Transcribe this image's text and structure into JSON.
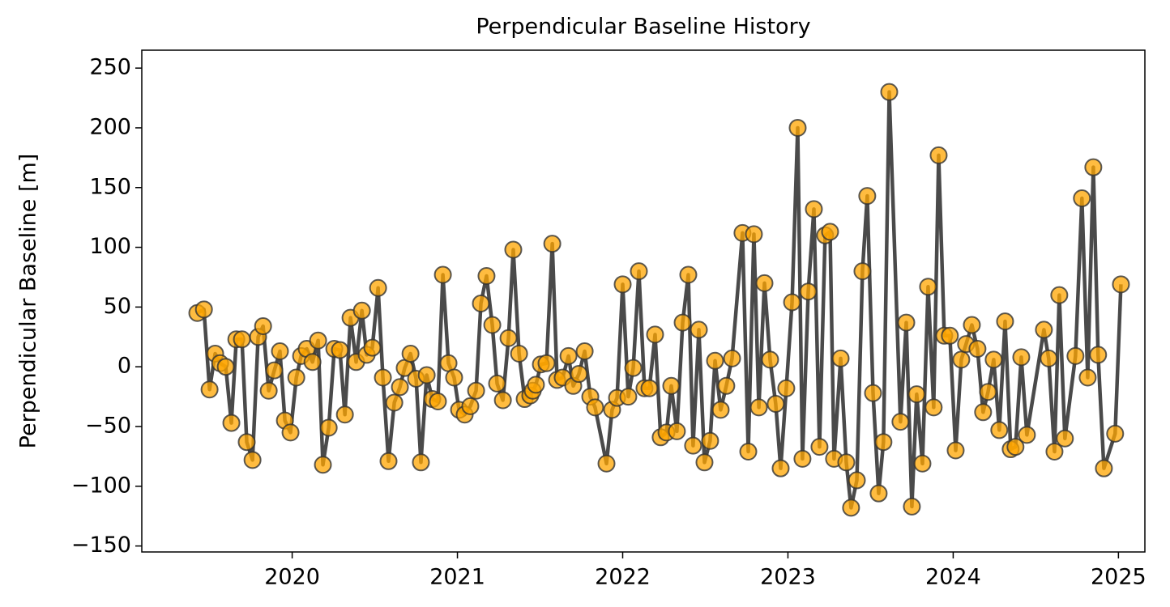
{
  "chart_data": {
    "type": "line",
    "title": "Perpendicular Baseline History",
    "ylabel": "Perpendicular Baseline [m]",
    "x": [
      2019.426,
      2019.466,
      2019.5,
      2019.534,
      2019.564,
      2019.598,
      2019.632,
      2019.662,
      2019.696,
      2019.725,
      2019.76,
      2019.794,
      2019.824,
      2019.858,
      2019.892,
      2019.926,
      2019.956,
      2019.99,
      2020.025,
      2020.054,
      2020.088,
      2020.123,
      2020.157,
      2020.186,
      2020.221,
      2020.255,
      2020.289,
      2020.319,
      2020.353,
      2020.387,
      2020.422,
      2020.451,
      2020.485,
      2020.52,
      2020.549,
      2020.583,
      2020.618,
      2020.652,
      2020.681,
      2020.716,
      2020.75,
      2020.779,
      2020.814,
      2020.848,
      2020.882,
      2020.912,
      2020.946,
      2020.98,
      2021.01,
      2021.044,
      2021.078,
      2021.113,
      2021.142,
      2021.176,
      2021.211,
      2021.24,
      2021.275,
      2021.309,
      2021.338,
      2021.373,
      2021.407,
      2021.441,
      2021.456,
      2021.475,
      2021.505,
      2021.539,
      2021.574,
      2021.603,
      2021.637,
      2021.672,
      2021.701,
      2021.735,
      2021.77,
      2021.804,
      2021.833,
      2021.902,
      2021.936,
      2021.966,
      2022.0,
      2022.034,
      2022.064,
      2022.098,
      2022.132,
      2022.162,
      2022.196,
      2022.23,
      2022.265,
      2022.294,
      2022.328,
      2022.363,
      2022.397,
      2022.426,
      2022.461,
      2022.495,
      2022.529,
      2022.559,
      2022.593,
      2022.627,
      2022.662,
      2022.725,
      2022.76,
      2022.794,
      2022.824,
      2022.858,
      2022.892,
      2022.926,
      2022.956,
      2022.99,
      2023.025,
      2023.059,
      2023.088,
      2023.123,
      2023.157,
      2023.191,
      2023.225,
      2023.255,
      2023.279,
      2023.319,
      2023.353,
      2023.382,
      2023.417,
      2023.451,
      2023.48,
      2023.515,
      2023.549,
      2023.578,
      2023.613,
      2023.681,
      2023.716,
      2023.75,
      2023.779,
      2023.814,
      2023.848,
      2023.882,
      2023.912,
      2023.946,
      2023.98,
      2024.015,
      2024.049,
      2024.078,
      2024.113,
      2024.147,
      2024.181,
      2024.211,
      2024.245,
      2024.279,
      2024.314,
      2024.348,
      2024.377,
      2024.412,
      2024.446,
      2024.549,
      2024.578,
      2024.613,
      2024.642,
      2024.676,
      2024.74,
      2024.779,
      2024.814,
      2024.848,
      2024.877,
      2024.912,
      2024.98,
      2025.015
    ],
    "values": [
      45,
      48,
      -19,
      11,
      3,
      0,
      -47,
      23,
      23,
      -63,
      -78,
      25,
      34,
      -20,
      -3,
      13,
      -45,
      -55,
      -9,
      9,
      15,
      4,
      22,
      -82,
      -51,
      15,
      14,
      -40,
      41,
      4,
      47,
      10,
      16,
      66,
      -9,
      -79,
      -30,
      -17,
      -1,
      11,
      -10,
      -80,
      -7,
      -27,
      -29,
      77,
      3,
      -9,
      -36,
      -40,
      -33,
      -20,
      53,
      76,
      35,
      -14,
      -28,
      24,
      98,
      11,
      -27,
      -24,
      -20,
      -15,
      2,
      3,
      103,
      -11,
      -9,
      9,
      -16,
      -6,
      13,
      -25,
      -34,
      -81,
      -36,
      -26,
      69,
      -25,
      -1,
      80,
      -18,
      -18,
      27,
      -59,
      -55,
      -16,
      -54,
      37,
      77,
      -66,
      31,
      -80,
      -62,
      5,
      -36,
      -16,
      7,
      112,
      -71,
      111,
      -34,
      70,
      6,
      -31,
      -85,
      -18,
      54,
      200,
      -77,
      63,
      132,
      -67,
      110,
      113,
      -77,
      7,
      -80,
      -118,
      -95,
      80,
      143,
      -22,
      -106,
      -63,
      230,
      -46,
      37,
      -117,
      -23,
      -81,
      67,
      -34,
      177,
      26,
      26,
      -70,
      6,
      19,
      35,
      15,
      -38,
      -21,
      6,
      -53,
      38,
      -69,
      -67,
      8,
      -57,
      31,
      7,
      -71,
      60,
      -60,
      9,
      141,
      -9,
      167,
      10,
      -85,
      -56,
      69
    ],
    "color": "#ffa500",
    "line_color": "#404040",
    "xlim": [
      2019.09,
      2025.16
    ],
    "xticks": [
      2020,
      2021,
      2022,
      2023,
      2024,
      2025
    ],
    "ylim": [
      -155,
      265
    ],
    "yticks": [
      {
        "value": -150,
        "label": "−150"
      },
      {
        "value": -100,
        "label": "−100"
      },
      {
        "value": -50,
        "label": "−50"
      },
      0,
      50,
      100,
      150,
      200,
      250
    ],
    "grid": false
  }
}
